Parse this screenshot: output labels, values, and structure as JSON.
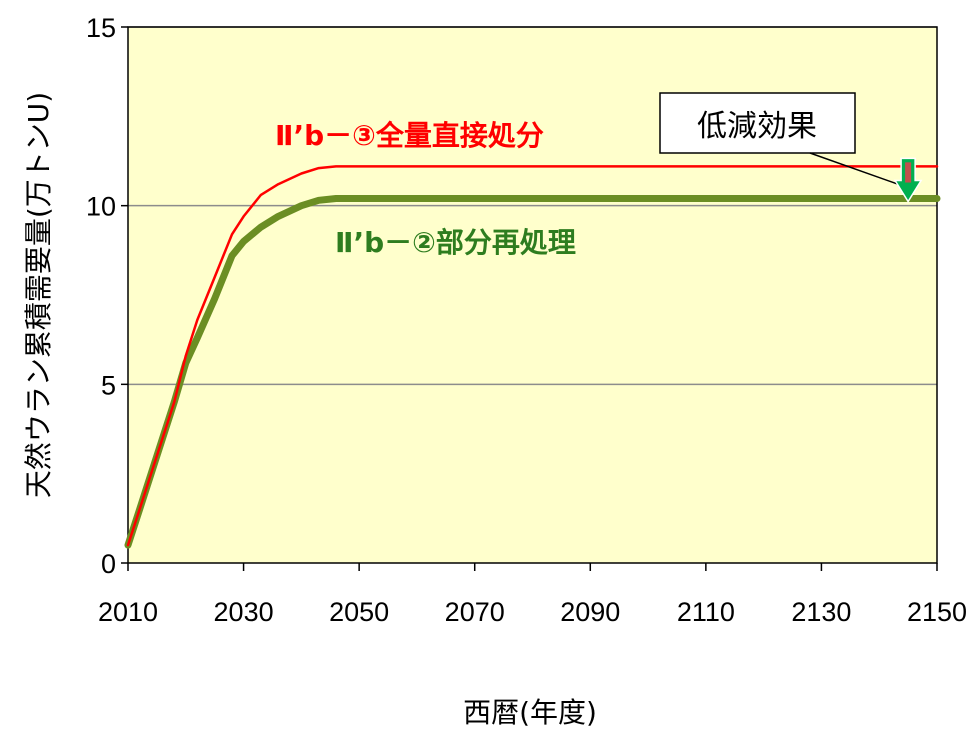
{
  "chart_data": {
    "type": "line",
    "title": "",
    "xlabel": "西暦(年度)",
    "ylabel": "天然ウラン累積需要量(万トンU)",
    "xlim": [
      2010,
      2150
    ],
    "ylim": [
      0,
      15
    ],
    "x_ticks": [
      2010,
      2030,
      2050,
      2070,
      2090,
      2110,
      2130,
      2150
    ],
    "y_ticks": [
      0,
      5,
      10,
      15
    ],
    "grid": "horizontal",
    "plot_background": "#ffffcc",
    "series": [
      {
        "name": "Ⅱ’b－③全量直接処分",
        "color": "#ff0000",
        "x": [
          2010,
          2012,
          2015,
          2018,
          2020,
          2022,
          2025,
          2028,
          2030,
          2033,
          2036,
          2040,
          2043,
          2046,
          2050,
          2070,
          2100,
          2150
        ],
        "y": [
          0.5,
          1.5,
          3.0,
          4.5,
          5.8,
          6.8,
          8.0,
          9.2,
          9.7,
          10.3,
          10.6,
          10.9,
          11.05,
          11.1,
          11.1,
          11.1,
          11.1,
          11.1
        ]
      },
      {
        "name": "Ⅱ’b－②部分再処理",
        "color": "#6b8e23",
        "x": [
          2010,
          2012,
          2015,
          2018,
          2020,
          2022,
          2025,
          2028,
          2030,
          2033,
          2036,
          2040,
          2043,
          2046,
          2050,
          2070,
          2100,
          2150
        ],
        "y": [
          0.5,
          1.5,
          3.0,
          4.5,
          5.6,
          6.3,
          7.4,
          8.6,
          9.0,
          9.4,
          9.7,
          10.0,
          10.15,
          10.2,
          10.2,
          10.2,
          10.2,
          10.2
        ]
      }
    ],
    "annotation": {
      "text": "低減効果",
      "arrow_x": 2145,
      "arrow_color": "#00b050"
    }
  }
}
